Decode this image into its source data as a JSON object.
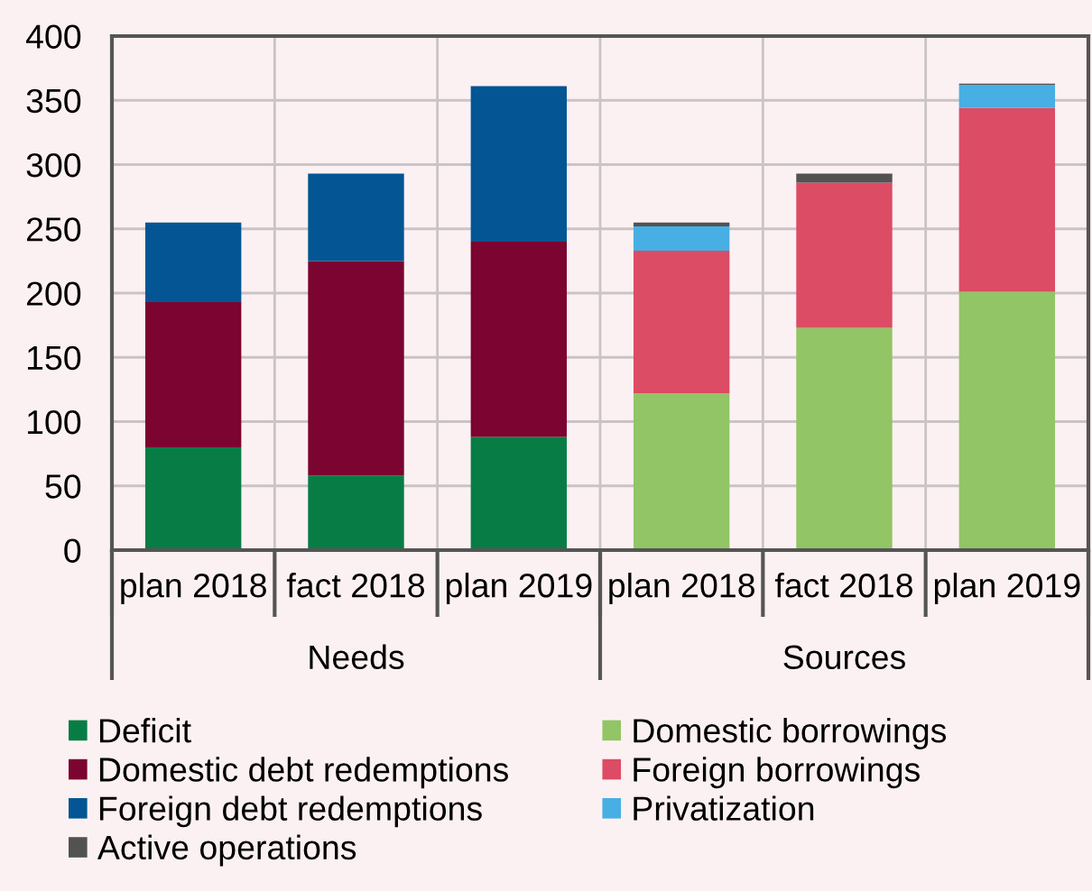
{
  "chart_data": {
    "type": "bar",
    "stacked": true,
    "categories": [
      "plan 2018",
      "fact 2018",
      "plan 2019",
      "plan 2018",
      "fact 2018",
      "plan 2019"
    ],
    "annotations": [
      "Needs",
      "Sources"
    ],
    "series": [
      {
        "name": "Deficit",
        "color": "#077d45",
        "values": [
          80,
          58,
          88,
          null,
          null,
          null
        ]
      },
      {
        "name": "Domestic borrowings",
        "color": "#92c565",
        "values": [
          null,
          null,
          null,
          122,
          173,
          201
        ]
      },
      {
        "name": "Domestic debt redemptions",
        "color": "#7b0430",
        "values": [
          113,
          167,
          152,
          null,
          null,
          null
        ]
      },
      {
        "name": "Foreign borrowings",
        "color": "#dc4c64",
        "values": [
          null,
          null,
          null,
          111,
          113,
          143
        ]
      },
      {
        "name": "Foreign debt redemptions",
        "color": "#035693",
        "values": [
          62,
          68,
          121,
          null,
          null,
          null
        ]
      },
      {
        "name": "Privatization",
        "color": "#47afe3",
        "values": [
          null,
          null,
          null,
          19,
          null,
          18
        ]
      },
      {
        "name": "Active operations",
        "color": "#525252",
        "values": [
          null,
          null,
          null,
          3,
          7,
          1
        ]
      }
    ],
    "ylim": [
      0,
      400
    ],
    "yticks": [
      0,
      50,
      100,
      150,
      200,
      250,
      300,
      350,
      400
    ],
    "grid": true,
    "legend": "bottom"
  }
}
